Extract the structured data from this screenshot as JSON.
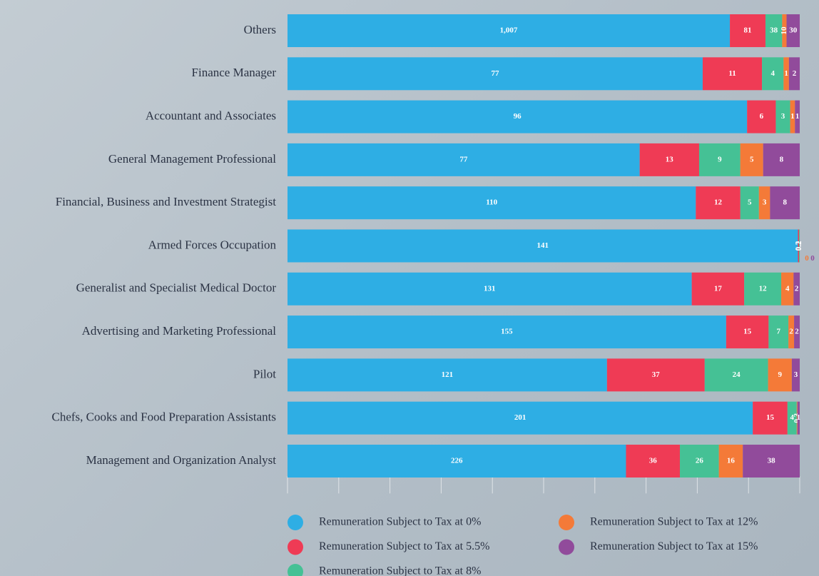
{
  "chart_data": {
    "type": "bar",
    "orientation": "horizontal",
    "stacked": "percent",
    "categories": [
      "Others",
      "Finance Manager",
      "Accountant and Associates",
      "General Management Professional",
      "Financial, Business and Investment Strategist",
      "Armed Forces Occupation",
      "Generalist and Specialist Medical Doctor",
      "Advertising and Marketing Professional",
      "Pilot",
      "Chefs, Cooks and Food Preparation Assistants",
      "Management and Organization Analyst"
    ],
    "series": [
      {
        "name": "Remuneration Subject to Tax at 0%",
        "color": "#2eaee4",
        "values": [
          1007,
          77,
          96,
          77,
          110,
          141,
          131,
          155,
          121,
          201,
          226
        ],
        "value_labels": [
          "1,007",
          "77",
          "96",
          "77",
          "110",
          "141",
          "131",
          "155",
          "121",
          "201",
          "226"
        ]
      },
      {
        "name": "Remuneration Subject to Tax at 5.5%",
        "color": "#ef3b55",
        "values": [
          81,
          11,
          6,
          13,
          12,
          0.3,
          17,
          15,
          37,
          15,
          36
        ]
      },
      {
        "name": "Remuneration Subject to Tax at 8%",
        "color": "#45c195",
        "values": [
          38,
          4,
          3,
          9,
          5,
          0.2,
          12,
          7,
          24,
          4,
          26
        ]
      },
      {
        "name": "Remuneration Subject to Tax at 12%",
        "color": "#f47a38",
        "values": [
          10,
          1,
          1,
          5,
          3,
          0,
          4,
          2,
          9,
          0.3,
          16
        ]
      },
      {
        "name": "Remuneration Subject to Tax at 15%",
        "color": "#914b9b",
        "values": [
          30,
          2,
          1,
          8,
          8,
          0,
          2,
          2,
          3,
          1,
          38
        ]
      }
    ],
    "xlim": [
      0,
      100
    ],
    "xticks": [
      0,
      10,
      20,
      30,
      40,
      50,
      60,
      70,
      80,
      90,
      100
    ]
  }
}
